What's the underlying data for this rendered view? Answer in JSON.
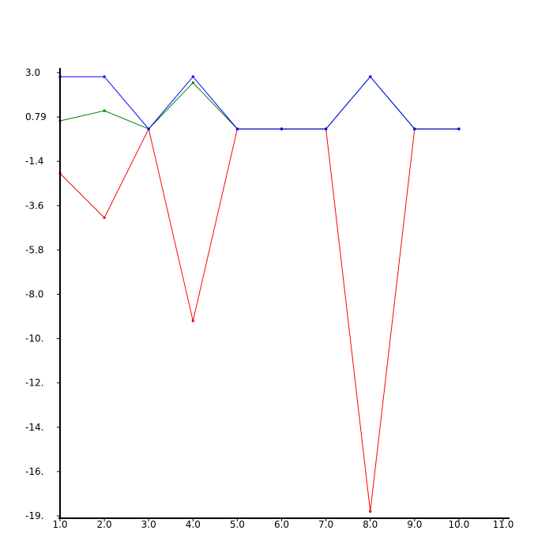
{
  "chart_data": {
    "type": "line",
    "title": "",
    "xlabel": "",
    "ylabel": "",
    "xlim": [
      1.0,
      11.0
    ],
    "ylim": [
      -19.0,
      3.0
    ],
    "x_ticks": [
      1.0,
      2.0,
      3.0,
      4.0,
      5.0,
      6.0,
      7.0,
      8.0,
      9.0,
      10.0,
      11.0
    ],
    "x_tick_labels": [
      "1.0",
      "2.0",
      "3.0",
      "4.0",
      "5.0",
      "6.0",
      "7.0",
      "8.0",
      "9.0",
      "10.0",
      "11.0"
    ],
    "y_ticks": [
      3.0,
      0.79,
      -1.4,
      -3.6,
      -5.8,
      -8.0,
      -10.0,
      -12.0,
      -14.0,
      -16.0,
      -19.0
    ],
    "y_tick_labels": [
      "3.0",
      "0.79",
      "-1.4",
      "-3.6",
      "-5.8",
      "-8.0",
      "-10.",
      "-12.",
      "-14.",
      "-16.",
      "-19."
    ],
    "grid": false,
    "legend": "none",
    "series": [
      {
        "color": "#ff0000",
        "x": [
          1,
          2,
          3,
          4,
          5,
          6,
          7,
          8,
          9,
          10
        ],
        "values": [
          -2.0,
          -4.2,
          0.2,
          -9.2,
          0.2,
          0.2,
          0.2,
          -18.7,
          0.2,
          0.2
        ]
      },
      {
        "color": "#008000",
        "x": [
          1,
          2,
          3,
          4,
          5,
          6,
          7,
          8,
          9,
          10
        ],
        "values": [
          0.6,
          1.1,
          0.2,
          2.5,
          0.2,
          0.2,
          0.2,
          2.8,
          0.2,
          0.2
        ]
      },
      {
        "color": "#0000ff",
        "x": [
          1,
          2,
          3,
          4,
          5,
          6,
          7,
          8,
          9,
          10
        ],
        "values": [
          2.8,
          2.8,
          0.2,
          2.8,
          0.2,
          0.2,
          0.2,
          2.8,
          0.2,
          0.2
        ]
      }
    ]
  }
}
